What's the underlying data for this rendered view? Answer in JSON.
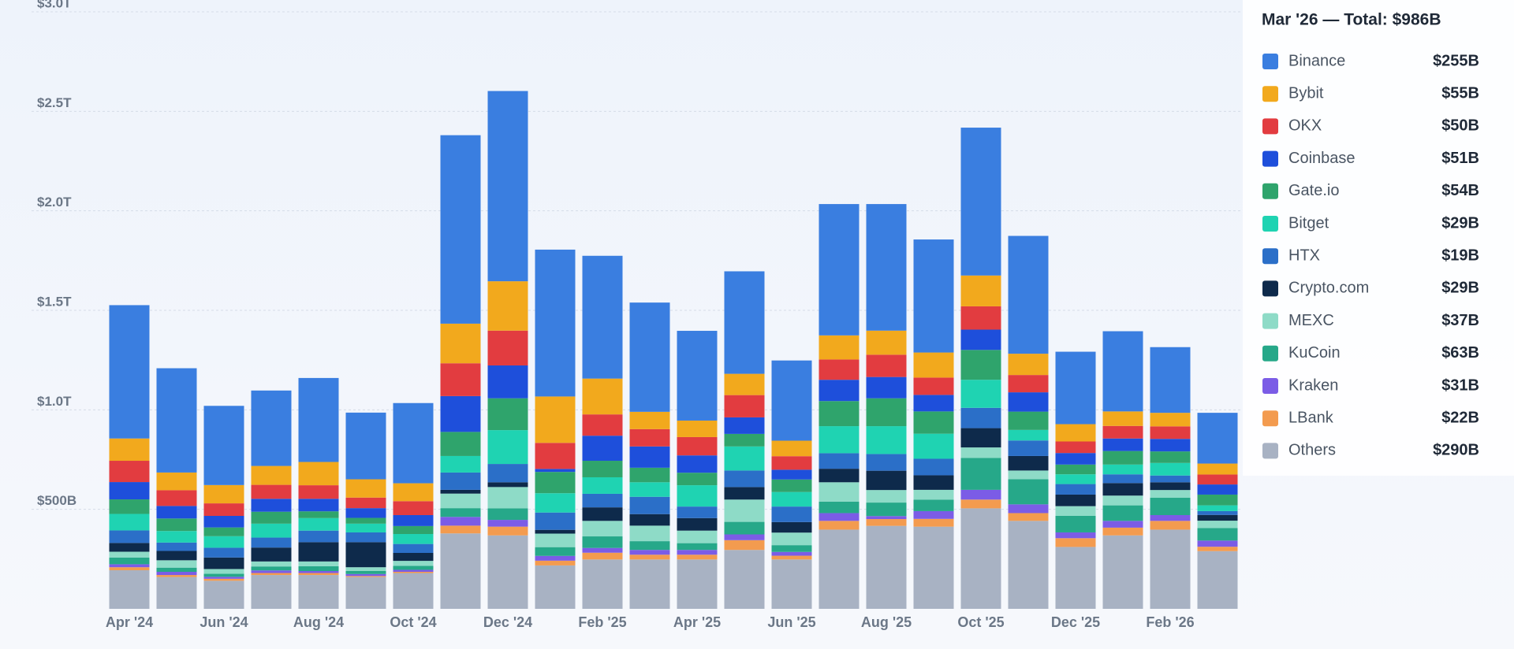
{
  "chart_data": {
    "type": "stacked_bar",
    "legend_title": "Mar '26 — Total: $986B",
    "categories": [
      "Apr '24",
      null,
      "Jun '24",
      null,
      "Aug '24",
      null,
      "Oct '24",
      null,
      "Dec '24",
      null,
      "Feb '25",
      null,
      "Apr '25",
      null,
      "Jun '25",
      null,
      "Aug '25",
      null,
      "Oct '25",
      null,
      "Dec '25",
      null,
      "Feb '26",
      null
    ],
    "ylim": [
      0,
      3000
    ],
    "yticks": [
      {
        "value": 500,
        "label": "$500B"
      },
      {
        "value": 1000,
        "label": "$1.0T"
      },
      {
        "value": 1500,
        "label": "$1.5T"
      },
      {
        "value": 2000,
        "label": "$2.0T"
      },
      {
        "value": 2500,
        "label": "$2.5T"
      },
      {
        "value": 3000,
        "label": "$3.0T"
      }
    ],
    "grid": true,
    "legend": "right",
    "series": [
      {
        "name": "Binance",
        "color": "#3a7ee0",
        "values": [
          670,
          524,
          398,
          379,
          422,
          335,
          403,
          947,
          956,
          738,
          617,
          549,
          451,
          515,
          403,
          660,
          636,
          568,
          743,
          592,
          364,
          403,
          330,
          255
        ],
        "value_labels": [
          null,
          null,
          null,
          null,
          null,
          null,
          null,
          null,
          null,
          null,
          null,
          null,
          null,
          null,
          null,
          null,
          null,
          null,
          null,
          null,
          null,
          null,
          null,
          "$255B"
        ]
      },
      {
        "name": "Bybit",
        "color": "#f2a91d",
        "values": [
          112,
          89,
          92,
          95,
          117,
          92,
          90,
          199,
          248,
          233,
          180,
          87,
          83,
          107,
          78,
          121,
          121,
          126,
          155,
          107,
          87,
          73,
          68,
          55
        ],
        "value_labels": [
          null,
          null,
          null,
          null,
          null,
          null,
          null,
          null,
          null,
          null,
          null,
          null,
          null,
          null,
          null,
          null,
          null,
          null,
          null,
          null,
          null,
          null,
          null,
          "$55B"
        ]
      },
      {
        "name": "OKX",
        "color": "#e23c40",
        "values": [
          107,
          79,
          63,
          70,
          68,
          53,
          70,
          165,
          175,
          131,
          107,
          87,
          92,
          112,
          68,
          102,
          112,
          87,
          117,
          87,
          58,
          63,
          63,
          50
        ],
        "value_labels": [
          null,
          null,
          null,
          null,
          null,
          null,
          null,
          null,
          null,
          null,
          null,
          null,
          null,
          null,
          null,
          null,
          null,
          null,
          null,
          null,
          null,
          null,
          null,
          "$50B"
        ]
      },
      {
        "name": "Coinbase",
        "color": "#1e4fdb",
        "values": [
          87,
          63,
          58,
          65,
          63,
          49,
          55,
          180,
          165,
          15,
          126,
          107,
          87,
          83,
          49,
          107,
          107,
          83,
          102,
          97,
          58,
          63,
          63,
          51
        ],
        "value_labels": [
          null,
          null,
          null,
          null,
          null,
          null,
          null,
          null,
          null,
          null,
          null,
          null,
          null,
          null,
          null,
          null,
          null,
          null,
          null,
          null,
          null,
          null,
          null,
          "$51B"
        ]
      },
      {
        "name": "Gate.io",
        "color": "#2fa46c",
        "values": [
          73,
          63,
          44,
          60,
          34,
          29,
          40,
          121,
          160,
          107,
          83,
          73,
          63,
          63,
          63,
          126,
          140,
          112,
          150,
          92,
          49,
          68,
          58,
          54
        ],
        "value_labels": [
          null,
          null,
          null,
          null,
          null,
          null,
          null,
          null,
          null,
          null,
          null,
          null,
          null,
          null,
          null,
          null,
          null,
          null,
          null,
          null,
          null,
          null,
          null,
          "$54B"
        ]
      },
      {
        "name": "Bitget",
        "color": "#1fd3b2",
        "values": [
          83,
          58,
          58,
          70,
          63,
          44,
          50,
          83,
          170,
          97,
          83,
          73,
          107,
          121,
          73,
          136,
          140,
          126,
          141,
          53,
          49,
          49,
          63,
          29
        ],
        "value_labels": [
          null,
          null,
          null,
          null,
          null,
          null,
          null,
          null,
          null,
          null,
          null,
          null,
          null,
          null,
          null,
          null,
          null,
          null,
          null,
          null,
          null,
          null,
          null,
          "$29B"
        ]
      },
      {
        "name": "HTX",
        "color": "#2b6fc8",
        "values": [
          63,
          42,
          49,
          50,
          58,
          49,
          45,
          87,
          92,
          87,
          68,
          87,
          58,
          83,
          78,
          78,
          84,
          83,
          102,
          78,
          53,
          44,
          34,
          19
        ],
        "value_labels": [
          null,
          null,
          null,
          null,
          null,
          null,
          null,
          null,
          null,
          null,
          null,
          null,
          null,
          null,
          null,
          null,
          null,
          null,
          null,
          null,
          null,
          null,
          null,
          "$19B"
        ]
      },
      {
        "name": "Crypto.com",
        "color": "#0e2a4b",
        "values": [
          44,
          47,
          58,
          70,
          97,
          126,
          40,
          19,
          24,
          19,
          68,
          58,
          63,
          63,
          53,
          68,
          97,
          73,
          97,
          73,
          58,
          63,
          39,
          29
        ],
        "value_labels": [
          null,
          null,
          null,
          null,
          null,
          null,
          null,
          null,
          null,
          null,
          null,
          null,
          null,
          null,
          null,
          null,
          null,
          null,
          null,
          null,
          null,
          null,
          null,
          "$29B"
        ]
      },
      {
        "name": "MEXC",
        "color": "#8edbc7",
        "values": [
          29,
          37,
          24,
          25,
          24,
          19,
          25,
          73,
          107,
          68,
          78,
          78,
          63,
          112,
          63,
          97,
          63,
          49,
          53,
          44,
          49,
          49,
          39,
          37
        ],
        "value_labels": [
          null,
          null,
          null,
          null,
          null,
          null,
          null,
          null,
          null,
          null,
          null,
          null,
          null,
          null,
          null,
          null,
          null,
          null,
          null,
          null,
          null,
          null,
          null,
          "$37B"
        ]
      },
      {
        "name": "KuCoin",
        "color": "#26a889",
        "values": [
          34,
          21,
          15,
          20,
          24,
          15,
          20,
          44,
          58,
          44,
          58,
          44,
          34,
          63,
          34,
          58,
          68,
          58,
          160,
          126,
          83,
          78,
          87,
          63
        ],
        "value_labels": [
          null,
          null,
          null,
          null,
          null,
          null,
          null,
          null,
          null,
          null,
          null,
          null,
          null,
          null,
          null,
          null,
          null,
          null,
          null,
          null,
          null,
          null,
          null,
          "$63B"
        ]
      },
      {
        "name": "Kraken",
        "color": "#7b5ce6",
        "values": [
          15,
          16,
          10,
          13,
          10,
          10,
          10,
          44,
          34,
          24,
          24,
          24,
          24,
          29,
          19,
          39,
          15,
          39,
          49,
          44,
          29,
          34,
          29,
          31
        ],
        "value_labels": [
          null,
          null,
          null,
          null,
          null,
          null,
          null,
          null,
          null,
          null,
          null,
          null,
          null,
          null,
          null,
          null,
          null,
          null,
          null,
          null,
          null,
          null,
          null,
          "$31B"
        ]
      },
      {
        "name": "LBank",
        "color": "#f39b4f",
        "values": [
          15,
          10,
          10,
          10,
          10,
          5,
          6,
          39,
          44,
          24,
          34,
          24,
          24,
          49,
          19,
          44,
          34,
          39,
          44,
          39,
          44,
          39,
          44,
          22
        ],
        "value_labels": [
          null,
          null,
          null,
          null,
          null,
          null,
          null,
          null,
          null,
          null,
          null,
          null,
          null,
          null,
          null,
          null,
          null,
          null,
          null,
          null,
          null,
          null,
          null,
          "$22B"
        ]
      },
      {
        "name": "Others",
        "color": "#a8b2c3",
        "values": [
          194,
          160,
          141,
          170,
          170,
          160,
          180,
          379,
          369,
          218,
          248,
          248,
          248,
          296,
          248,
          398,
          417,
          413,
          505,
          442,
          311,
          369,
          398,
          290
        ],
        "value_labels": [
          null,
          null,
          null,
          null,
          null,
          null,
          null,
          null,
          null,
          null,
          null,
          null,
          null,
          null,
          null,
          null,
          null,
          null,
          null,
          null,
          null,
          null,
          null,
          "$290B"
        ]
      }
    ]
  }
}
